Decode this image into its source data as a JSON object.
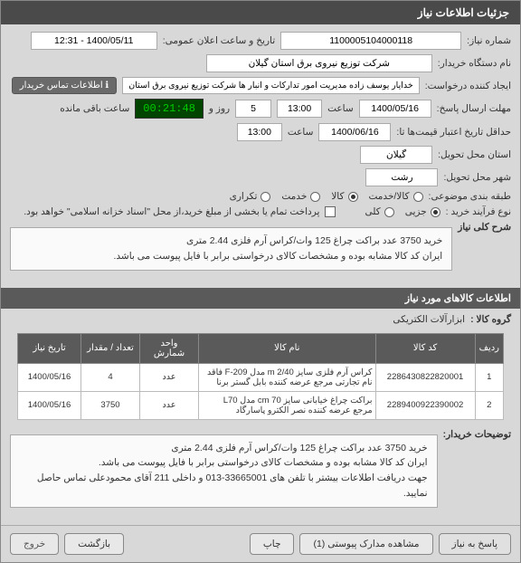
{
  "titlebar": "جزئیات اطلاعات نیاز",
  "form": {
    "needNumberLabel": "شماره نیاز:",
    "needNumber": "1100005104000118",
    "announceDateLabel": "تاریخ و ساعت اعلان عمومی:",
    "announceDate": "1400/05/11 - 12:31",
    "orgLabel": "نام دستگاه خریدار:",
    "org": "شرکت توزیع نیروی برق استان گیلان",
    "requesterLabel": "ایجاد کننده درخواست:",
    "requester": "خدایار یوسف زاده مدیریت امور تدارکات و انبار ها شرکت توزیع نیروی برق استان",
    "contactBtn": "اطلاعات تماس خریدار",
    "deadlineLabel": "مهلت ارسال پاسخ:",
    "deadlineDate": "1400/05/16",
    "timeLabel": "ساعت",
    "deadlineTime": "13:00",
    "remainingDays": "5",
    "remainingDaysLabel": "روز و",
    "countdown": "00:21:48",
    "remainingLabel": "ساعت باقی مانده",
    "validityLabel": "حداقل تاریخ اعتبار قیمت‌ها تا:",
    "validityDate": "1400/06/16",
    "validityTime": "13:00",
    "provinceLabel": "استان محل تحویل:",
    "province": "گیلان",
    "cityLabel": "شهر محل تحویل:",
    "city": "رشت",
    "assortLabel": "طبقه بندی موضوعی:",
    "assortGoods": "کالا/خدمت",
    "assortGoodsOnly": "کالا",
    "assortService": "خدمت",
    "assortRepeat": "تکراری",
    "processLabel": "نوع فرآیند خرید :",
    "processPartial": "جزیی",
    "processFull": "کلی",
    "paymentNote": "پرداخت تمام یا بخشی از مبلغ خرید،از محل \"اسناد خزانه اسلامی\" خواهد بود."
  },
  "desc": {
    "sectionLabel": "شرح کلی نیاز",
    "line1": "خرید 3750 عدد براکت چراغ 125 وات/کراس آرم فلزی 2.44 متری",
    "line2": "ایران کد کالا مشابه بوده و مشخصات کالای درخواستی برابر با فایل پیوست می باشد."
  },
  "items": {
    "section": "اطلاعات کالاهای مورد نیاز",
    "groupLabel": "گروه کالا :",
    "group": "ابزارآلات الکتریکی",
    "cols": {
      "row": "ردیف",
      "code": "کد کالا",
      "name": "نام کالا",
      "unit": "واحد شمارش",
      "qty": "تعداد / مقدار",
      "date": "تاریخ نیاز"
    },
    "rows": [
      {
        "n": "1",
        "code": "2286430822820001",
        "name": "کراس آرم فلزی سایز m 2/40 مدل F-209 فاقد نام تجارتی مرجع عرضه کننده بابل گستر برنا",
        "unit": "عدد",
        "qty": "4",
        "date": "1400/05/16"
      },
      {
        "n": "2",
        "code": "2289400922390002",
        "name": "براکت چراغ خیابانی سایز cm 70 مدل L70 مرجع عرضه کننده نصر الکترو پاسارگاد",
        "unit": "عدد",
        "qty": "3750",
        "date": "1400/05/16"
      }
    ]
  },
  "buyerNotes": {
    "label": "توضیحات خریدار:",
    "line1": "خرید 3750 عدد براکت چراغ 125 وات/کراس آرم فلزی 2.44 متری",
    "line2": "ایران کد کالا مشابه بوده و مشخصات کالای درخواستی برابر با فایل پیوست می باشد.",
    "line3": "جهت دریافت اطلاعات بیشتر با تلفن های 33665001-013 و داخلی 211 آقای محمودعلی تماس حاصل نمایید."
  },
  "buttons": {
    "respond": "پاسخ به نیاز",
    "viewAttach": "مشاهده مدارک پیوستی (1)",
    "print": "چاپ",
    "back": "بازگشت",
    "exit": "خروج"
  }
}
